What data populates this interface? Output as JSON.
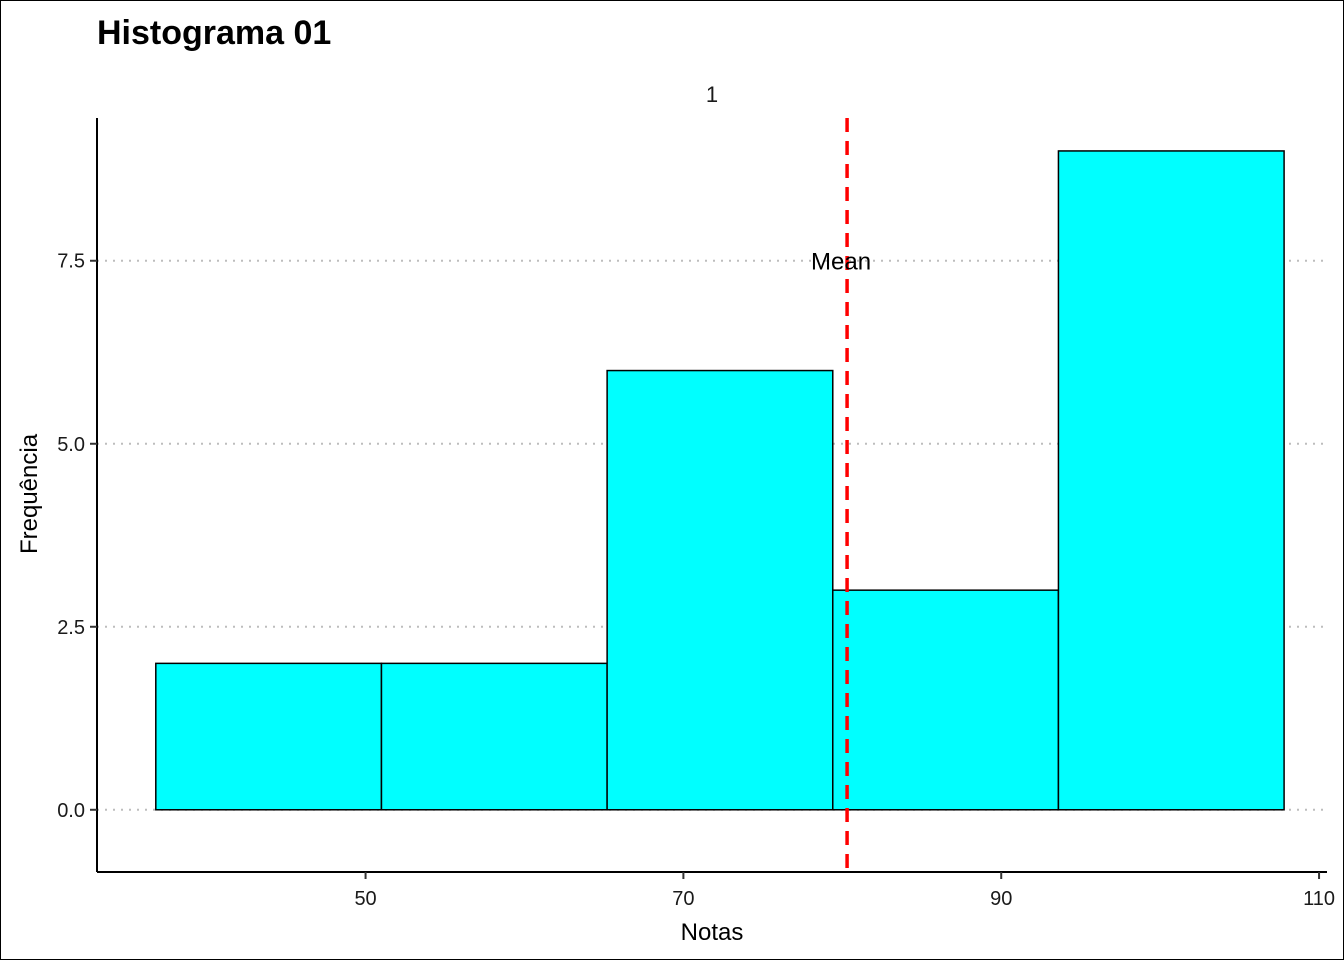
{
  "chart_data": {
    "type": "bar",
    "title": "Histograma 01",
    "facet_label": "1",
    "xlabel": "Notas",
    "ylabel": "Frequência",
    "xlim": [
      33.1,
      110.5
    ],
    "ylim": [
      -0.85,
      9.45
    ],
    "x_ticks": [
      50,
      70,
      90,
      110
    ],
    "y_ticks": [
      0.0,
      2.5,
      5.0,
      7.5
    ],
    "y_tick_labels": [
      "0.0",
      "2.5",
      "5.0",
      "7.5"
    ],
    "grid": "horizontal dotted",
    "bins": [
      {
        "x0": 36.8,
        "x1": 51.0,
        "count": 2
      },
      {
        "x0": 51.0,
        "x1": 65.2,
        "count": 2
      },
      {
        "x0": 65.2,
        "x1": 79.4,
        "count": 6
      },
      {
        "x0": 79.4,
        "x1": 93.6,
        "count": 3
      },
      {
        "x0": 93.6,
        "x1": 107.8,
        "count": 9
      }
    ],
    "mean_line": {
      "value": 80.3,
      "label": "Mean",
      "label_y": 7.5,
      "color": "#ff0000"
    },
    "bar_fill": "#00ffff",
    "bar_stroke": "#000000"
  }
}
